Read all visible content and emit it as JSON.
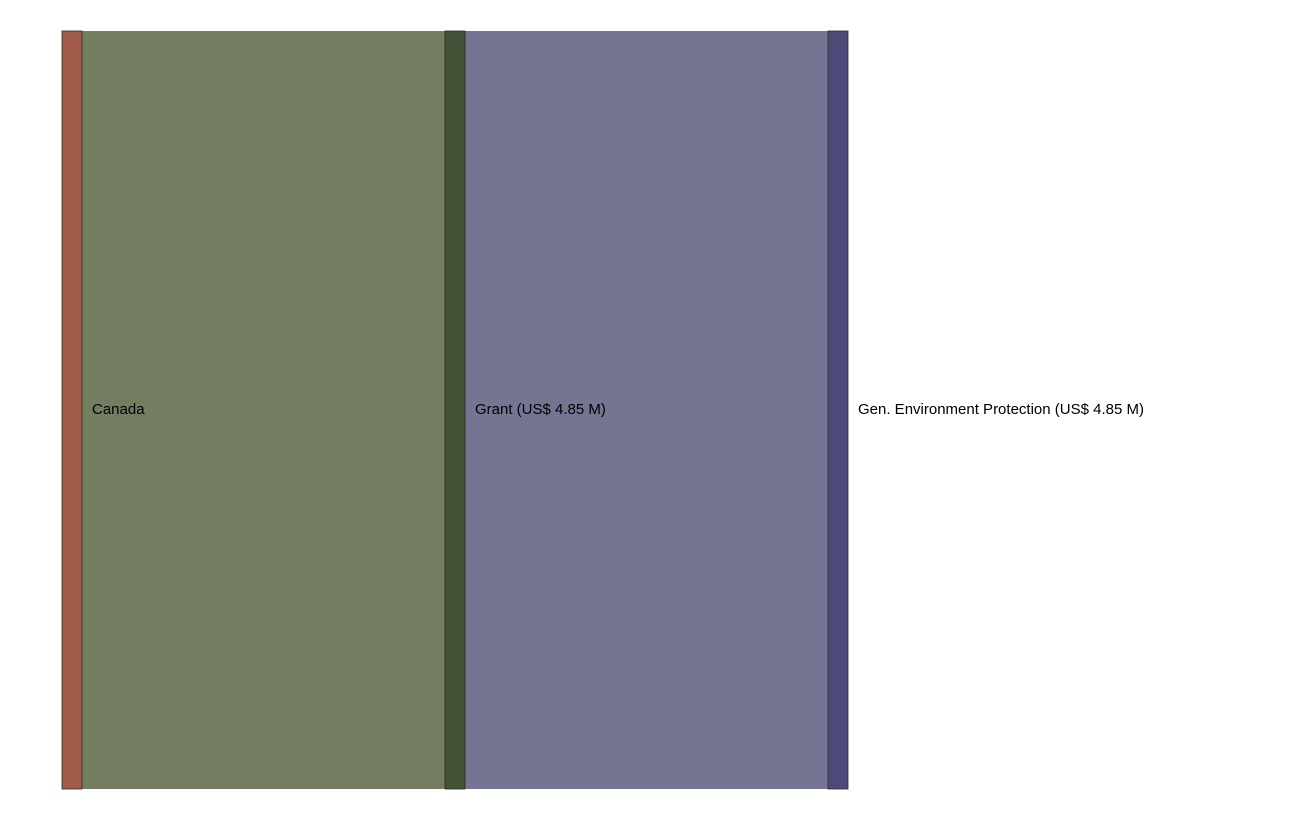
{
  "chart_data": {
    "type": "sankey",
    "title": "",
    "unit": "US$ M",
    "columns": [
      {
        "nodes": [
          {
            "id": "canada",
            "label": "Canada",
            "value": 4.85,
            "color": "#a05a48"
          }
        ]
      },
      {
        "nodes": [
          {
            "id": "grant",
            "label": "Grant (US$ 4.85 M)",
            "value": 4.85,
            "color": "#435236"
          }
        ]
      },
      {
        "nodes": [
          {
            "id": "gen-env",
            "label": "Gen. Environment Protection (US$ 4.85 M)",
            "value": 4.85,
            "color": "#4c4a78"
          }
        ]
      }
    ],
    "links": [
      {
        "source": "canada",
        "target": "grant",
        "value": 4.85,
        "color": "#737d60"
      },
      {
        "source": "grant",
        "target": "gen-env",
        "value": 4.85,
        "color": "#747592"
      }
    ]
  }
}
